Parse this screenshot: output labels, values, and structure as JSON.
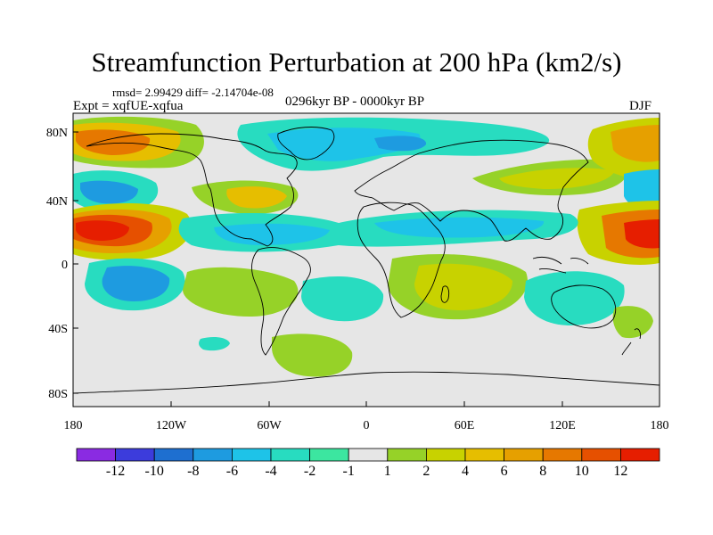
{
  "title": "Streamfunction Perturbation at 200 hPa (km2/s)",
  "stats": "rmsd= 2.99429 diff= -2.14704e-08",
  "expt": "Expt = xqfUE-xqfua",
  "period": "0296kyr BP - 0000kyr BP",
  "season": "DJF",
  "lat_labels": [
    "80N",
    "40N",
    "0",
    "40S",
    "80S"
  ],
  "lon_labels": [
    "180",
    "120W",
    "60W",
    "0",
    "60E",
    "120E",
    "180"
  ],
  "colorbar": {
    "colors": [
      "#8a2be2",
      "#3c3cdc",
      "#1e6fd0",
      "#1e9be0",
      "#1ec3e8",
      "#28dcc0",
      "#3ce6a0",
      "#e6e6e6",
      "#96d228",
      "#c8d200",
      "#e6be00",
      "#e6a000",
      "#e67800",
      "#e65000",
      "#e61e00"
    ],
    "labels": [
      "-12",
      "-10",
      "-8",
      "-6",
      "-4",
      "-2",
      "-1",
      "1",
      "2",
      "4",
      "6",
      "8",
      "10",
      "12"
    ]
  }
}
